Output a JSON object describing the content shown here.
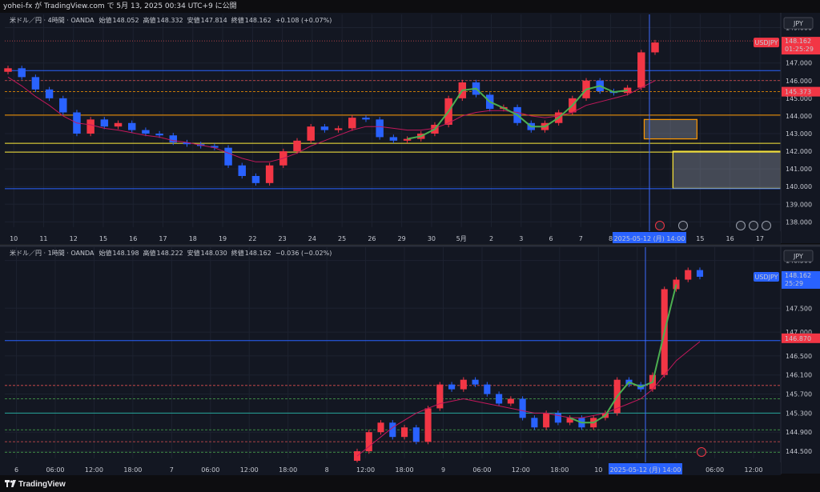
{
  "page": {
    "header": "yohei-fx が TradingView.com で 5月 13, 2025 00:34 UTC+9 に公開",
    "brand": "TradingView"
  },
  "colors": {
    "bg": "#131722",
    "up": "#f23645",
    "down": "#2962ff",
    "grid": "#1d2230",
    "blue_line": "#2962ff",
    "orange": "#ff9800",
    "yellow": "#ffeb3b",
    "green": "#4caf50",
    "ma": "#c2185b"
  },
  "chart_data": [
    {
      "name": "4h",
      "type": "line",
      "symbol_box": "JPY",
      "legend": {
        "title": "米ドル／円 · 4時間 · OANDA",
        "open_label": "始値",
        "open": "148.052",
        "high_label": "高値",
        "high": "148.332",
        "low_label": "安値",
        "low": "147.814",
        "close_label": "終値",
        "close": "148.162",
        "change": "+0.108 (+0.07%)"
      },
      "ylim": [
        137.7,
        149.75
      ],
      "y_ticks": [
        "149.000",
        "147.000",
        "146.000",
        "145.000",
        "144.000",
        "143.000",
        "142.000",
        "141.000",
        "140.000",
        "139.000",
        "138.000"
      ],
      "x_ticks": [
        "10",
        "11",
        "12",
        "15",
        "16",
        "17",
        "18",
        "19",
        "22",
        "23",
        "24",
        "25",
        "26",
        "29",
        "30",
        "5月",
        "2",
        "3",
        "6",
        "7",
        "8",
        "9",
        "14",
        "15",
        "16",
        "17"
      ],
      "price_label": {
        "symbol": "USDJPY",
        "price": "148.162",
        "countdown": "01:25:29"
      },
      "marked_level": "145.373",
      "crosshair_label": "2025-05-12 (月)   14:00",
      "levels": [
        {
          "price": 146.57,
          "kind": "blue"
        },
        {
          "price": 146.0,
          "kind": "red-dash"
        },
        {
          "price": 145.373,
          "kind": "orange-dash"
        },
        {
          "price": 144.05,
          "kind": "orange"
        },
        {
          "price": 142.45,
          "kind": "yellow"
        },
        {
          "price": 141.95,
          "kind": "yellow"
        },
        {
          "price": 139.88,
          "kind": "blue"
        },
        {
          "price": 148.25,
          "kind": "red-dot"
        }
      ],
      "zones": [
        {
          "from_pos": 0.824,
          "to_pos": 0.892,
          "low": 142.7,
          "high": 143.8,
          "color": "orange"
        },
        {
          "from_pos": 0.861,
          "to_pos": 1.0,
          "low": 139.9,
          "high": 142.0,
          "color": "yellow"
        }
      ],
      "close_series": [
        146.7,
        146.2,
        145.5,
        145.0,
        144.2,
        143.0,
        143.8,
        143.4,
        143.6,
        143.2,
        143.0,
        142.9,
        142.5,
        142.4,
        142.3,
        142.2,
        141.2,
        140.6,
        140.2,
        141.2,
        142.0,
        142.6,
        143.4,
        143.2,
        143.3,
        143.9,
        143.8,
        142.8,
        142.6,
        142.7,
        143.0,
        143.5,
        145.0,
        145.9,
        145.2,
        144.4,
        144.5,
        143.6,
        143.2,
        143.6,
        144.2,
        145.0,
        146.0,
        145.4,
        145.3,
        145.6,
        147.6,
        148.16
      ],
      "ma_series": [
        146.2,
        145.7,
        145.1,
        144.6,
        144.0,
        143.6,
        143.5,
        143.3,
        143.2,
        143.05,
        142.9,
        142.8,
        142.6,
        142.5,
        142.35,
        142.2,
        141.9,
        141.6,
        141.4,
        141.4,
        141.6,
        141.9,
        142.3,
        142.6,
        142.9,
        143.2,
        143.4,
        143.4,
        143.3,
        143.2,
        143.2,
        143.3,
        143.6,
        144.0,
        144.2,
        144.3,
        144.3,
        144.2,
        144.0,
        143.9,
        144.0,
        144.2,
        144.6,
        144.8,
        145.0,
        145.2,
        145.6,
        146.0
      ]
    },
    {
      "name": "1h",
      "type": "line",
      "symbol_box": "JPY",
      "legend": {
        "title": "米ドル／円 · 1時間 · OANDA",
        "open_label": "始値",
        "open": "148.198",
        "high_label": "高値",
        "high": "148.222",
        "low_label": "安値",
        "low": "148.030",
        "close_label": "終値",
        "close": "148.162",
        "change": "−0.036 (−0.02%)"
      },
      "ylim": [
        144.35,
        148.78
      ],
      "y_ticks": [
        "148.500",
        "147.500",
        "147.000",
        "146.500",
        "146.100",
        "145.700",
        "145.300",
        "144.900",
        "144.500"
      ],
      "x_ticks": [
        "6",
        "06:00",
        "12:00",
        "18:00",
        "7",
        "06:00",
        "12:00",
        "18:00",
        "8",
        "12:00",
        "18:00",
        "9",
        "06:00",
        "12:00",
        "18:00",
        "10",
        "12",
        "13",
        "06:00",
        "12:00"
      ],
      "price_label": {
        "symbol": "USDJPY",
        "price": "148.162",
        "countdown": "25:29"
      },
      "marked_level": "146.870",
      "crosshair_label": "2025-05-12 (月)   14:00",
      "levels": [
        {
          "price": 146.82,
          "kind": "blue"
        },
        {
          "price": 145.88,
          "kind": "red-dash"
        },
        {
          "price": 145.6,
          "kind": "green-dash"
        },
        {
          "price": 145.3,
          "kind": "teal"
        },
        {
          "price": 144.95,
          "kind": "green-dash"
        },
        {
          "price": 144.7,
          "kind": "red-dash"
        },
        {
          "price": 144.48,
          "kind": "green-dash"
        }
      ],
      "close_series": [
        144.5,
        144.9,
        145.1,
        144.8,
        145.0,
        144.7,
        145.4,
        145.9,
        145.8,
        146.0,
        145.9,
        145.7,
        145.5,
        145.6,
        145.2,
        145.0,
        145.3,
        145.1,
        145.2,
        145.0,
        145.2,
        145.3,
        146.0,
        145.9,
        145.8,
        146.1,
        147.9,
        148.1,
        148.3,
        148.16
      ],
      "ma_series": [
        144.4,
        144.6,
        144.8,
        145.0,
        145.15,
        145.3,
        145.4,
        145.5,
        145.55,
        145.6,
        145.55,
        145.5,
        145.45,
        145.4,
        145.35,
        145.3,
        145.3,
        145.25,
        145.2,
        145.2,
        145.25,
        145.3,
        145.4,
        145.5,
        145.6,
        145.8,
        146.1,
        146.4,
        146.6,
        146.8
      ]
    }
  ]
}
